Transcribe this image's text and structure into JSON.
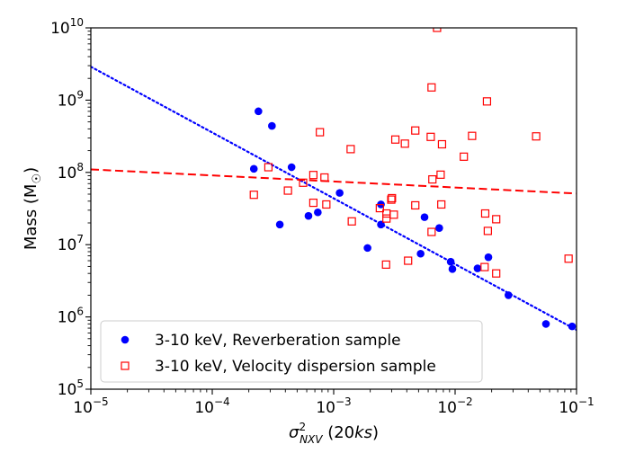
{
  "chart_data": {
    "type": "scatter",
    "x_scale": "log",
    "y_scale": "log",
    "xlim": [
      1e-05,
      0.1
    ],
    "ylim": [
      100000.0,
      10000000000.0
    ],
    "xlabel": "σ²NXV (20ks)",
    "xlabel_parts": {
      "symbol": "σ",
      "sup": "2",
      "sub": "NXV",
      "rest": " (20",
      "italic": "ks",
      "close": ")"
    },
    "ylabel": "Mass (M☉)",
    "ylabel_parts": {
      "main": "Mass (M",
      "sub": "☉",
      "close": ")"
    },
    "x_ticks": [
      {
        "base": "10",
        "exp": "−5",
        "value": 1e-05
      },
      {
        "base": "10",
        "exp": "−4",
        "value": 0.0001
      },
      {
        "base": "10",
        "exp": "−3",
        "value": 0.001
      },
      {
        "base": "10",
        "exp": "−2",
        "value": 0.01
      },
      {
        "base": "10",
        "exp": "−1",
        "value": 0.1
      }
    ],
    "y_ticks": [
      {
        "base": "10",
        "exp": "5",
        "value": 100000.0
      },
      {
        "base": "10",
        "exp": "6",
        "value": 1000000.0
      },
      {
        "base": "10",
        "exp": "7",
        "value": 10000000.0
      },
      {
        "base": "10",
        "exp": "8",
        "value": 100000000.0
      },
      {
        "base": "10",
        "exp": "9",
        "value": 1000000000.0
      },
      {
        "base": "10",
        "exp": "10",
        "value": 10000000000.0
      }
    ],
    "legend_position": "lower-left",
    "series": [
      {
        "name": "3-10 keV, Reverberation sample",
        "marker": "filled-circle",
        "color": "#0000ff",
        "points": [
          [
            0.00024,
            700000000.0
          ],
          [
            0.00031,
            440000000.0
          ],
          [
            0.00022,
            112000000.0
          ],
          [
            0.00045,
            118000000.0
          ],
          [
            0.00036,
            19000000.0
          ],
          [
            0.00062,
            25000000.0
          ],
          [
            0.00074,
            28000000.0
          ],
          [
            0.00112,
            52000000.0
          ],
          [
            0.00245,
            36000000.0
          ],
          [
            0.00245,
            19000000.0
          ],
          [
            0.0019,
            9000000.0
          ],
          [
            0.0056,
            24000000.0
          ],
          [
            0.0074,
            17000000.0
          ],
          [
            0.0052,
            7500000.0
          ],
          [
            0.0092,
            5800000.0
          ],
          [
            0.0095,
            4600000.0
          ],
          [
            0.0153,
            4700000.0
          ],
          [
            0.0188,
            6700000.0
          ],
          [
            0.0275,
            2000000.0
          ],
          [
            0.056,
            800000.0
          ],
          [
            0.092,
            740000.0
          ]
        ]
      },
      {
        "name": "3-10 keV, Velocity dispersion sample",
        "marker": "open-square",
        "color": "#ff0000",
        "points": [
          [
            0.0071,
            10000000000.0
          ],
          [
            0.0064,
            1500000000.0
          ],
          [
            0.0183,
            960000000.0
          ],
          [
            0.00077,
            360000000.0
          ],
          [
            0.0047,
            380000000.0
          ],
          [
            0.0063,
            310000000.0
          ],
          [
            0.00322,
            285000000.0
          ],
          [
            0.00386,
            250000000.0
          ],
          [
            0.0078,
            245000000.0
          ],
          [
            0.0138,
            320000000.0
          ],
          [
            0.0465,
            315000000.0
          ],
          [
            0.00138,
            210000000.0
          ],
          [
            0.0118,
            165000000.0
          ],
          [
            0.00029,
            118000000.0
          ],
          [
            0.00068,
            92000000.0
          ],
          [
            0.00084,
            85000000.0
          ],
          [
            0.0076,
            93000000.0
          ],
          [
            0.0065,
            80000000.0
          ],
          [
            0.00056,
            72000000.0
          ],
          [
            0.00042,
            56000000.0
          ],
          [
            0.00022,
            49000000.0
          ],
          [
            0.00302,
            44000000.0
          ],
          [
            0.00298,
            42000000.0
          ],
          [
            0.00068,
            38000000.0
          ],
          [
            0.00087,
            36000000.0
          ],
          [
            0.0024,
            32000000.0
          ],
          [
            0.0047,
            35000000.0
          ],
          [
            0.0077,
            36000000.0
          ],
          [
            0.00272,
            27000000.0
          ],
          [
            0.00313,
            26000000.0
          ],
          [
            0.00272,
            23000000.0
          ],
          [
            0.00141,
            21000000.0
          ],
          [
            0.0177,
            27000000.0
          ],
          [
            0.0218,
            22500000.0
          ],
          [
            0.0186,
            15500000.0
          ],
          [
            0.0064,
            15000000.0
          ],
          [
            0.0041,
            6000000.0
          ],
          [
            0.0027,
            5300000.0
          ],
          [
            0.0175,
            4900000.0
          ],
          [
            0.0218,
            4000000.0
          ],
          [
            0.086,
            6400000.0
          ]
        ]
      }
    ],
    "fit_lines": [
      {
        "name": "blue-dotted-fit",
        "color": "#0000ff",
        "style": "dotted",
        "from": [
          1e-05,
          2900000000.0
        ],
        "to": [
          0.1,
          660000.0
        ]
      },
      {
        "name": "red-dashed-fit",
        "color": "#ff0000",
        "style": "dashed",
        "from": [
          1e-05,
          110000000.0
        ],
        "to": [
          0.1,
          51000000.0
        ]
      }
    ]
  }
}
